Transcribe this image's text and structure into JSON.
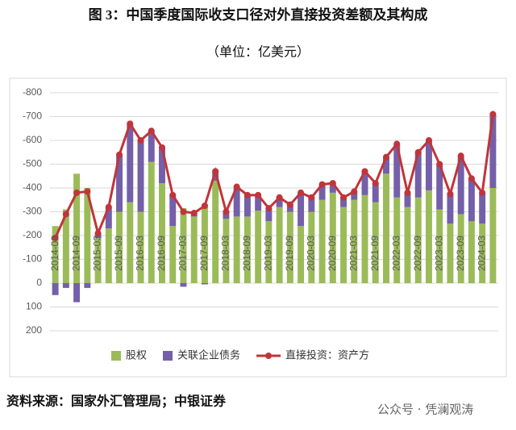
{
  "header": {
    "title": "图 3：中国季度国际收支口径对外直接投资差额及其构成",
    "subtitle": "（单位：亿美元）"
  },
  "chart_data": {
    "type": "bar",
    "categories": [
      "2014-03",
      null,
      "2014-09",
      null,
      "2015-03",
      null,
      "2015-09",
      null,
      "2016-03",
      null,
      "2016-09",
      null,
      "2017-03",
      null,
      "2017-09",
      null,
      "2018-03",
      null,
      "2018-09",
      null,
      "2019-03",
      null,
      "2019-09",
      null,
      "2020-03",
      null,
      "2020-09",
      null,
      "2021-03",
      null,
      "2021-09",
      null,
      "2022-03",
      null,
      "2022-09",
      null,
      "2023-03",
      null,
      "2023-09",
      null,
      "2024-03",
      null
    ],
    "series": [
      {
        "name": "股权",
        "type": "bar",
        "color": "#9bbb59",
        "values": [
          -240,
          -310,
          -460,
          -400,
          -190,
          -230,
          -300,
          -340,
          -300,
          -510,
          -420,
          -240,
          -315,
          -280,
          -330,
          -430,
          -270,
          -280,
          -280,
          -305,
          -260,
          -320,
          -300,
          -240,
          -300,
          -350,
          -380,
          -320,
          -350,
          -370,
          -340,
          -460,
          -360,
          -320,
          -360,
          -390,
          -310,
          -250,
          -290,
          -260,
          -250,
          -400
        ]
      },
      {
        "name": "关联企业债务",
        "type": "bar",
        "color": "#7460a8",
        "values": [
          50,
          20,
          80,
          20,
          -20,
          -90,
          -240,
          -330,
          -300,
          -130,
          -150,
          -130,
          15,
          -15,
          5,
          -40,
          -30,
          -125,
          -90,
          -65,
          -55,
          -40,
          -30,
          -140,
          -60,
          -65,
          -40,
          -40,
          -35,
          -100,
          -80,
          -70,
          -225,
          -60,
          -190,
          -210,
          -190,
          -125,
          -245,
          -180,
          -130,
          -310
        ]
      },
      {
        "name": "直接投资：资产方",
        "type": "line",
        "color": "#c0353a",
        "values": [
          -190,
          -290,
          -380,
          -385,
          -210,
          -320,
          -540,
          -670,
          -600,
          -640,
          -570,
          -370,
          -300,
          -295,
          -325,
          -470,
          -300,
          -405,
          -370,
          -370,
          -315,
          -360,
          -330,
          -380,
          -360,
          -415,
          -420,
          -360,
          -385,
          -470,
          -420,
          -530,
          -585,
          -380,
          -550,
          -600,
          -500,
          -375,
          -535,
          -440,
          -380,
          -710
        ]
      }
    ],
    "ylim": [
      200,
      -800
    ],
    "yticks": [
      -800,
      -700,
      -600,
      -500,
      -400,
      -300,
      -200,
      -100,
      0,
      100,
      200
    ],
    "grid": true,
    "legend": "bottom"
  },
  "footer": {
    "source": "资料来源：国家外汇管理局；中银证券",
    "watermark": "公众号 · 凭澜观涛"
  }
}
